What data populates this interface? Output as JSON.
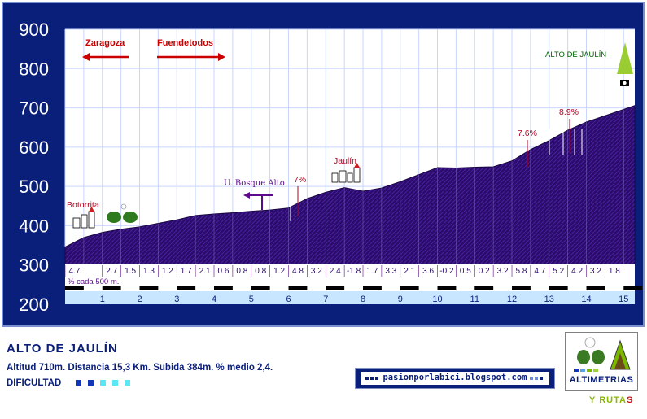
{
  "chart_data": {
    "type": "area",
    "title": "",
    "xlabel": "",
    "ylabel": "",
    "ylim": [
      200,
      900
    ],
    "xlim": [
      0,
      15.3
    ],
    "y_ticks": [
      200,
      300,
      400,
      500,
      600,
      700,
      800,
      900
    ],
    "x_ticks": [
      1,
      2,
      3,
      4,
      5,
      6,
      7,
      8,
      9,
      10,
      11,
      12,
      13,
      14,
      15
    ],
    "x_ticks_at": [
      1,
      2,
      3,
      4,
      5,
      6,
      7,
      8,
      9,
      10,
      11,
      12,
      13,
      14,
      15
    ],
    "grid": true,
    "profile": {
      "x": [
        0,
        0.5,
        1,
        1.5,
        2,
        2.5,
        3,
        3.5,
        4,
        4.5,
        5,
        5.5,
        6,
        6.5,
        7,
        7.5,
        8,
        8.5,
        9,
        9.5,
        10,
        10.5,
        11,
        11.5,
        12,
        12.5,
        13,
        13.5,
        14,
        14.5,
        15,
        15.3
      ],
      "y": [
        346,
        370,
        383,
        391,
        397,
        406,
        415,
        426,
        430,
        433,
        437,
        440,
        445,
        469,
        485,
        497,
        488,
        496,
        512,
        530,
        548,
        547,
        549,
        550,
        565,
        594,
        617,
        643,
        664,
        680,
        696,
        706
      ]
    },
    "gradient_caption": "% cada 500 m.",
    "gradients": [
      "4.7",
      "2.7",
      "1.5",
      "1.3",
      "1.2",
      "1.7",
      "2.1",
      "0.6",
      "0.8",
      "0.8",
      "1.2",
      "4.8",
      "3.2",
      "2.4",
      "-1.8",
      "1.7",
      "3.3",
      "2.1",
      "3.6",
      "-0.2",
      "0.5",
      "0.2",
      "3.2",
      "5.8",
      "4.7",
      "5.2",
      "4.2",
      "3.2",
      "1.8"
    ],
    "gradient_x": [
      0.25,
      1.25,
      1.75,
      2.25,
      2.75,
      3.25,
      3.75,
      4.25,
      4.75,
      5.25,
      5.75,
      6.25,
      6.75,
      7.25,
      7.75,
      8.25,
      8.75,
      9.25,
      9.75,
      10.25,
      10.75,
      11.25,
      11.75,
      12.25,
      12.75,
      13.25,
      13.75,
      14.25,
      14.75
    ],
    "annotations": {
      "zaragoza": "Zaragoza",
      "fuendetodos": "Fuendetodos",
      "botorrita": "Botorrita",
      "u_bosque_alto": "U. Bosque Alto",
      "jaulin": "Jaulín",
      "summit": "ALTO DE JAULÍN",
      "ramp_1": "7%",
      "ramp_2": "7.6%",
      "ramp_3": "8.9%"
    },
    "colors": {
      "fill": "#2a0d6b",
      "frame": "#0a1f7a",
      "annotation": "#b00020",
      "arrow": "#cc0000",
      "purple_label": "#5a0a8a",
      "summit": "#006400",
      "x_band": "#c8e6ff"
    }
  },
  "profile_title": "ALTO DE JAULÍN",
  "profile_stats": "Altitud 710m.   Distancia 15,3 Km.   Subida 384m.   % medio 2,4.",
  "difficulty_label": "DIFICULTAD",
  "difficulty_colors": [
    "#1238b8",
    "#1238b8",
    "#59e6f5",
    "#59e6f5",
    "#59e6f5"
  ],
  "blog_url": "pasionporlabici.blogspot.com",
  "logo_brand": "ALTIMETRIAS",
  "logo_tagline": "Y RUTA",
  "logo_tagline_end": "S"
}
